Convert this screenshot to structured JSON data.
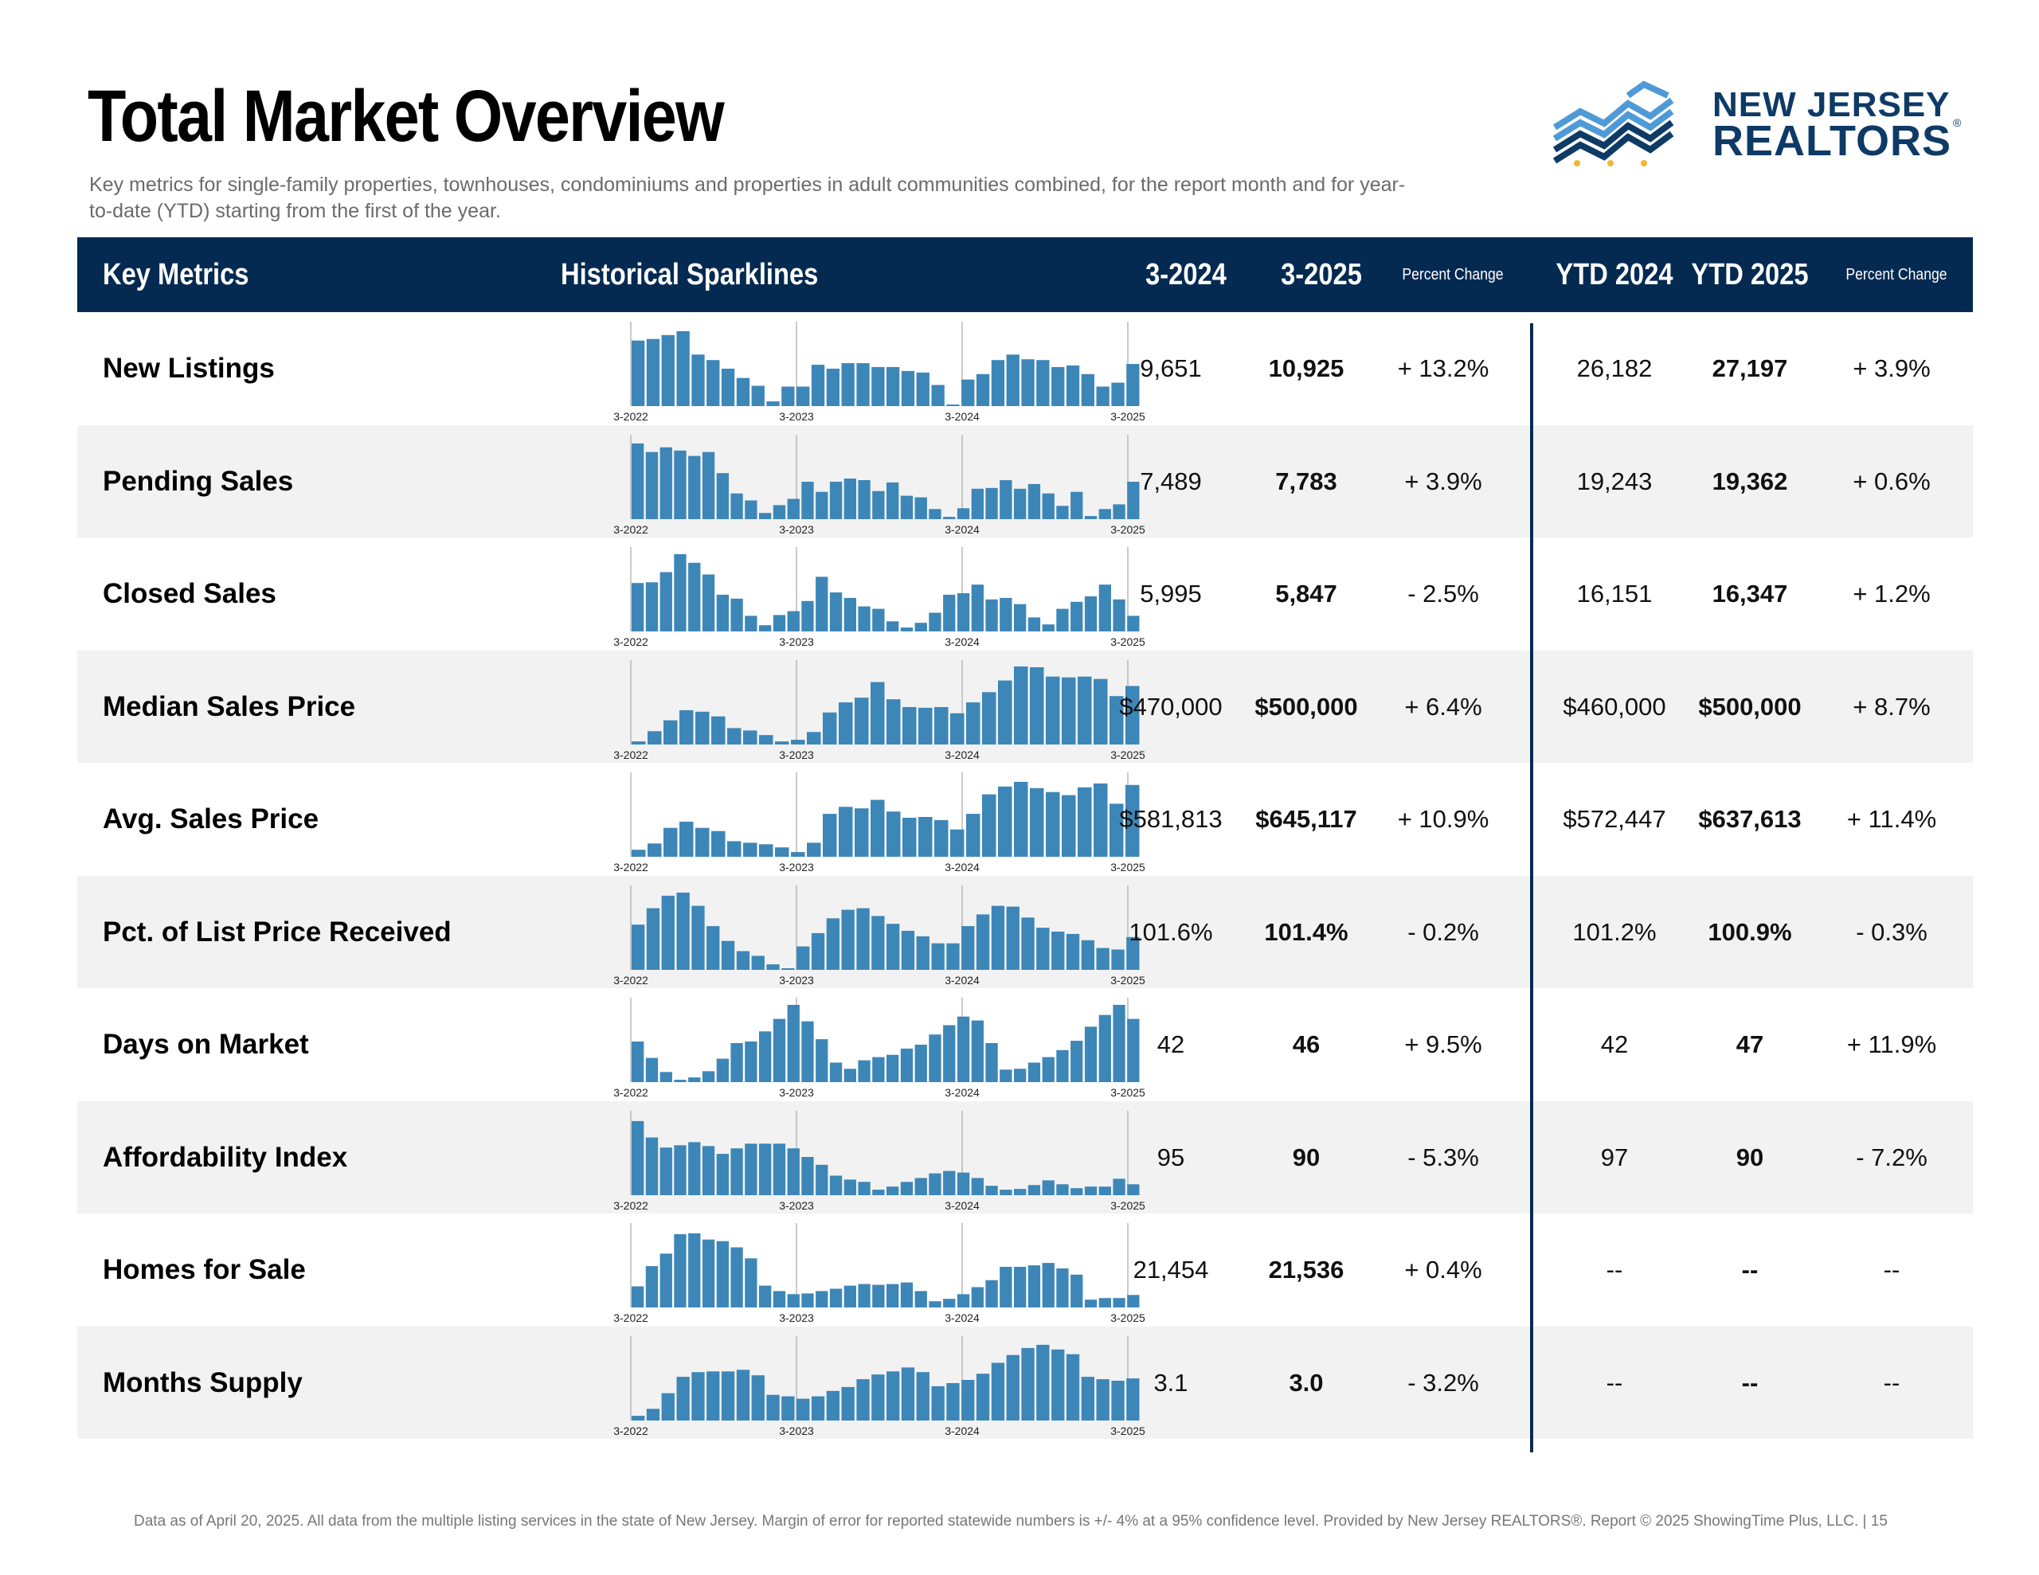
{
  "title": "Total Market Overview",
  "subtitle": "Key metrics for single-family properties, townhouses, condominiums and properties in adult communities combined, for the report month and for year-to-date (YTD) starting from the first of the year.",
  "logo": {
    "line1": "NEW JERSEY",
    "line2": "REALTORS",
    "reg": "®",
    "colors": {
      "light": "#4e9ad6",
      "dark": "#0e3a66",
      "dots": "#f2b731"
    }
  },
  "colors": {
    "header_bg": "#052a52",
    "bar": "#3d86b8",
    "alt_row": "#f2f2f2"
  },
  "header": {
    "metrics": "Key Metrics",
    "sparklines": "Historical Sparklines",
    "m2024": "3-2024",
    "m2025": "3-2025",
    "pct1": "Percent Change",
    "ytd2024": "YTD 2024",
    "ytd2025": "YTD 2025",
    "pct2": "Percent Change"
  },
  "spark_axis": [
    "3-2022",
    "3-2023",
    "3-2024",
    "3-2025"
  ],
  "rows": [
    {
      "label": "New Listings",
      "v2024": "9,651",
      "v2025": "10,925",
      "pct": "+ 13.2%",
      "ytd2024": "26,182",
      "ytd2025": "27,197",
      "ytdpct": "+ 3.9%",
      "spark": [
        0.84,
        0.86,
        0.91,
        0.96,
        0.66,
        0.59,
        0.48,
        0.36,
        0.26,
        0.06,
        0.25,
        0.25,
        0.53,
        0.48,
        0.55,
        0.55,
        0.5,
        0.5,
        0.45,
        0.43,
        0.27,
        0.01,
        0.34,
        0.41,
        0.59,
        0.66,
        0.6,
        0.59,
        0.5,
        0.52,
        0.41,
        0.25,
        0.3,
        0.54
      ]
    },
    {
      "label": "Pending Sales",
      "v2024": "7,489",
      "v2025": "7,783",
      "pct": "+ 3.9%",
      "ytd2024": "19,243",
      "ytd2025": "19,362",
      "ytdpct": "+ 0.6%",
      "spark": [
        0.97,
        0.86,
        0.92,
        0.88,
        0.81,
        0.86,
        0.59,
        0.33,
        0.24,
        0.08,
        0.18,
        0.26,
        0.48,
        0.35,
        0.48,
        0.52,
        0.5,
        0.36,
        0.47,
        0.3,
        0.28,
        0.13,
        0.03,
        0.14,
        0.39,
        0.4,
        0.5,
        0.39,
        0.45,
        0.33,
        0.17,
        0.35,
        0.04,
        0.13,
        0.19,
        0.48
      ]
    },
    {
      "label": "Closed Sales",
      "v2024": "5,995",
      "v2025": "5,847",
      "pct": "- 2.5%",
      "ytd2024": "16,151",
      "ytd2025": "16,347",
      "ytdpct": "+ 1.2%",
      "spark": [
        0.62,
        0.63,
        0.76,
        0.99,
        0.88,
        0.73,
        0.47,
        0.42,
        0.2,
        0.08,
        0.21,
        0.26,
        0.39,
        0.7,
        0.5,
        0.43,
        0.32,
        0.29,
        0.13,
        0.05,
        0.11,
        0.24,
        0.47,
        0.49,
        0.6,
        0.41,
        0.43,
        0.35,
        0.18,
        0.09,
        0.29,
        0.38,
        0.45,
        0.6,
        0.41,
        0.2
      ]
    },
    {
      "label": "Median Sales Price",
      "v2024": "$470,000",
      "v2025": "$500,000",
      "pct": "+ 6.4%",
      "ytd2024": "$460,000",
      "ytd2025": "$500,000",
      "ytdpct": "+ 8.7%",
      "spark": [
        0.04,
        0.17,
        0.31,
        0.44,
        0.42,
        0.36,
        0.21,
        0.18,
        0.12,
        0.04,
        0.06,
        0.16,
        0.41,
        0.54,
        0.6,
        0.8,
        0.58,
        0.48,
        0.47,
        0.48,
        0.4,
        0.54,
        0.67,
        0.82,
        1.0,
        0.99,
        0.87,
        0.86,
        0.87,
        0.84,
        0.62,
        0.75
      ]
    },
    {
      "label": "Avg. Sales Price",
      "v2024": "$581,813",
      "v2025": "$645,117",
      "pct": "+ 10.9%",
      "ytd2024": "$572,447",
      "ytd2025": "$637,613",
      "ytdpct": "+ 11.4%",
      "spark": [
        0.09,
        0.17,
        0.37,
        0.45,
        0.37,
        0.33,
        0.2,
        0.18,
        0.16,
        0.12,
        0.06,
        0.18,
        0.55,
        0.64,
        0.62,
        0.73,
        0.58,
        0.5,
        0.51,
        0.47,
        0.35,
        0.55,
        0.8,
        0.9,
        0.96,
        0.88,
        0.83,
        0.79,
        0.89,
        0.94,
        0.68,
        0.92
      ]
    },
    {
      "label": "Pct. of List Price Received",
      "v2024": "101.6%",
      "v2025": "101.4%",
      "pct": "- 0.2%",
      "ytd2024": "101.2%",
      "ytd2025": "100.9%",
      "ytdpct": "- 0.3%",
      "spark": [
        0.58,
        0.79,
        0.95,
        0.99,
        0.82,
        0.56,
        0.37,
        0.24,
        0.18,
        0.07,
        0.01,
        0.3,
        0.47,
        0.66,
        0.77,
        0.79,
        0.69,
        0.59,
        0.5,
        0.43,
        0.34,
        0.34,
        0.56,
        0.71,
        0.82,
        0.81,
        0.67,
        0.54,
        0.49,
        0.46,
        0.38,
        0.28,
        0.26,
        0.42
      ]
    },
    {
      "label": "Days on Market",
      "v2024": "42",
      "v2025": "46",
      "pct": "+ 9.5%",
      "ytd2024": "42",
      "ytd2025": "47",
      "ytdpct": "+ 11.9%",
      "spark": [
        0.52,
        0.31,
        0.13,
        0.03,
        0.06,
        0.14,
        0.3,
        0.5,
        0.52,
        0.65,
        0.81,
        0.99,
        0.78,
        0.55,
        0.25,
        0.17,
        0.28,
        0.32,
        0.35,
        0.43,
        0.48,
        0.61,
        0.73,
        0.84,
        0.79,
        0.5,
        0.16,
        0.17,
        0.25,
        0.32,
        0.41,
        0.53,
        0.71,
        0.86,
        0.99,
        0.81
      ]
    },
    {
      "label": "Affordability Index",
      "v2024": "95",
      "v2025": "90",
      "pct": "- 5.3%",
      "ytd2024": "97",
      "ytd2025": "90",
      "ytdpct": "- 7.2%",
      "spark": [
        0.95,
        0.74,
        0.61,
        0.64,
        0.68,
        0.63,
        0.53,
        0.6,
        0.66,
        0.66,
        0.66,
        0.6,
        0.49,
        0.39,
        0.25,
        0.2,
        0.17,
        0.07,
        0.11,
        0.17,
        0.22,
        0.28,
        0.31,
        0.29,
        0.22,
        0.12,
        0.07,
        0.08,
        0.13,
        0.19,
        0.14,
        0.09,
        0.11,
        0.11,
        0.21,
        0.14
      ]
    },
    {
      "label": "Homes for Sale",
      "v2024": "21,454",
      "v2025": "21,536",
      "pct": "+ 0.4%",
      "ytd2024": "--",
      "ytd2025": "--",
      "ytdpct": "--",
      "spark": [
        0.27,
        0.53,
        0.69,
        0.94,
        0.95,
        0.87,
        0.85,
        0.77,
        0.63,
        0.28,
        0.21,
        0.17,
        0.18,
        0.21,
        0.24,
        0.28,
        0.3,
        0.29,
        0.3,
        0.32,
        0.21,
        0.08,
        0.11,
        0.17,
        0.26,
        0.35,
        0.52,
        0.52,
        0.54,
        0.57,
        0.5,
        0.42,
        0.1,
        0.12,
        0.12,
        0.16
      ]
    },
    {
      "label": "Months Supply",
      "v2024": "3.1",
      "v2025": "3.0",
      "pct": "- 3.2%",
      "ytd2024": "--",
      "ytd2025": "--",
      "ytdpct": "--",
      "spark": [
        0.06,
        0.15,
        0.35,
        0.56,
        0.62,
        0.63,
        0.63,
        0.65,
        0.58,
        0.33,
        0.31,
        0.28,
        0.31,
        0.38,
        0.43,
        0.53,
        0.59,
        0.63,
        0.68,
        0.62,
        0.44,
        0.48,
        0.52,
        0.6,
        0.74,
        0.84,
        0.93,
        0.97,
        0.91,
        0.85,
        0.56,
        0.53,
        0.51,
        0.54
      ]
    }
  ],
  "footer": "Data as of April 20, 2025. All data from the multiple listing services in the state of New Jersey. Margin of error for reported statewide numbers is +/- 4% at a 95% confidence level. Provided by New Jersey REALTORS®. Report © 2025 ShowingTime Plus, LLC. |  15"
}
